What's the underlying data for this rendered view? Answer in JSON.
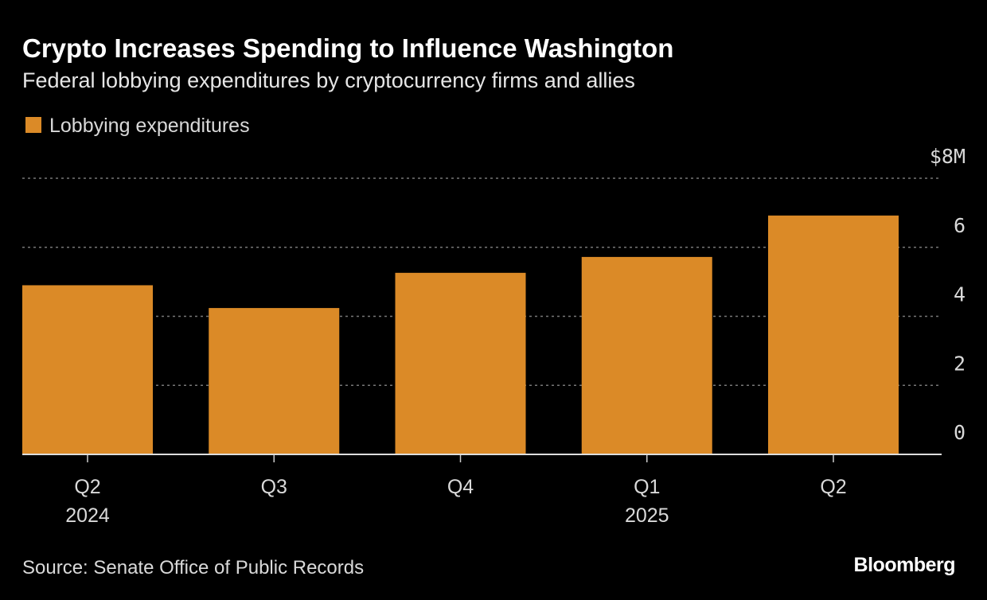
{
  "chart_data": {
    "type": "bar",
    "title": "Crypto Increases Spending to Influence Washington",
    "subtitle": "Federal lobbying expenditures by cryptocurrency firms and allies",
    "series": [
      {
        "name": "Lobbying expenditures",
        "color": "#db8a27",
        "values": [
          4.9,
          4.24,
          5.26,
          5.72,
          6.92
        ]
      }
    ],
    "categories": [
      "Q2",
      "Q3",
      "Q4",
      "Q1",
      "Q2"
    ],
    "category_years": [
      "2024",
      null,
      null,
      "2025",
      null
    ],
    "ylim": [
      0,
      8
    ],
    "yticks": [
      0,
      2,
      4,
      6,
      {
        "value": 8,
        "label": "$8M"
      }
    ],
    "grid": true,
    "source": "Source: Senate Office of Public Records",
    "brand": "Bloomberg"
  }
}
